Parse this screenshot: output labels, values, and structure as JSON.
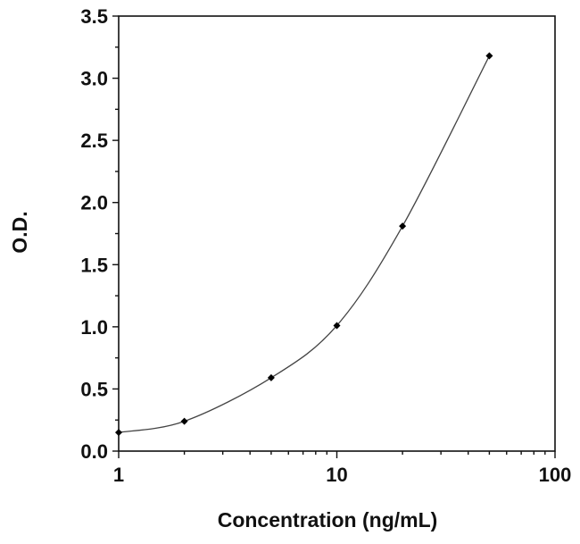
{
  "chart_data": {
    "type": "scatter",
    "title": "",
    "xlabel": "Concentration (ng/mL)",
    "ylabel": "O.D.",
    "x_scale": "log",
    "xlim": [
      1,
      100
    ],
    "ylim": [
      0,
      3.5
    ],
    "x_ticks": [
      "1",
      "10",
      "100"
    ],
    "y_ticks": [
      "0.0",
      "0.5",
      "1.0",
      "1.5",
      "2.0",
      "2.5",
      "3.0",
      "3.5"
    ],
    "grid": false,
    "legend": "none",
    "series": [
      {
        "x": [
          1,
          2,
          5,
          10,
          20,
          50
        ],
        "y": [
          0.15,
          0.24,
          0.59,
          1.01,
          1.81,
          3.18
        ],
        "marker": "diamond",
        "fit_curve": true
      }
    ],
    "colors": {
      "points": "#000000",
      "curve": "#444444",
      "axes": "#111111"
    }
  }
}
